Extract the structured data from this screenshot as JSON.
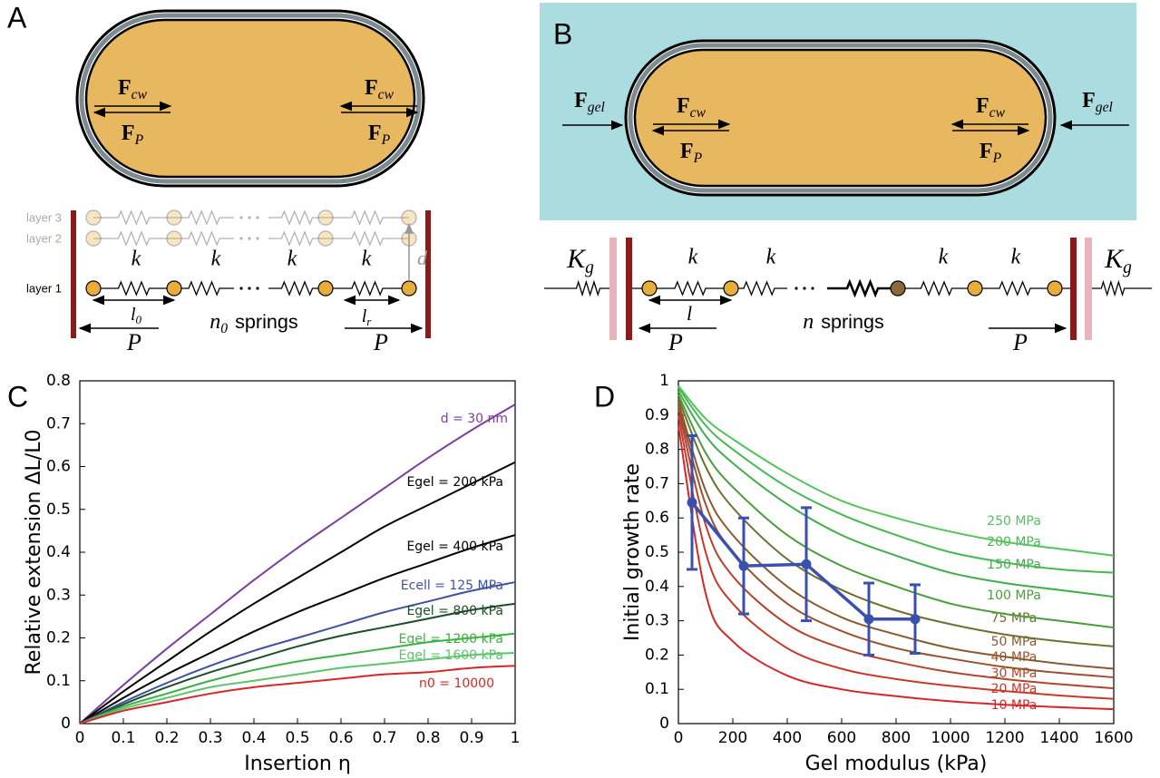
{
  "panel_a": {
    "label": "A",
    "force_cw": {
      "symbol": "F",
      "subscript": "cw"
    },
    "force_p": {
      "symbol": "F",
      "subscript": "P"
    },
    "layers": [
      "layer 3",
      "layer 2",
      "layer 1"
    ],
    "spring_constants": [
      "k",
      "k",
      "k",
      "k"
    ],
    "spacing": "d",
    "rest_length": {
      "symbol": "l",
      "subscript": "0"
    },
    "relaxed_length": {
      "symbol": "l",
      "subscript": "r"
    },
    "spring_count": {
      "symbol": "n",
      "subscript": "0",
      "text": "springs"
    },
    "pressure": [
      "P",
      "P"
    ]
  },
  "panel_b": {
    "label": "B",
    "force_gel": {
      "symbol": "F",
      "subscript": "gel"
    },
    "force_cw": {
      "symbol": "F",
      "subscript": "cw"
    },
    "force_p": {
      "symbol": "F",
      "subscript": "P"
    },
    "gel_stiffness": {
      "symbol": "K",
      "subscript": "g"
    },
    "spring_constants": [
      "k",
      "k",
      "k",
      "k"
    ],
    "length": "l",
    "spring_count": {
      "symbol": "n",
      "text": "springs"
    },
    "pressure": [
      "P",
      "P"
    ]
  },
  "chart_data": [
    {
      "type": "line",
      "panel": "C",
      "x_label": "Insertion η",
      "y_label": "Relative extension ΔL/L0",
      "x": [
        0,
        0.1,
        0.2,
        0.3,
        0.4,
        0.5,
        0.6,
        0.7,
        0.8,
        0.9,
        1
      ],
      "xlim": [
        0,
        1
      ],
      "ylim": [
        0,
        0.8
      ],
      "xticks": [
        0,
        0.1,
        0.2,
        0.3,
        0.4,
        0.5,
        0.6,
        0.7,
        0.8,
        0.9,
        1
      ],
      "yticks": [
        0,
        0.1,
        0.2,
        0.3,
        0.4,
        0.5,
        0.6,
        0.7,
        0.8
      ],
      "series": [
        {
          "name": "d = 30 nm",
          "color": "#7b3f9e",
          "values": [
            0,
            0.09,
            0.175,
            0.255,
            0.335,
            0.41,
            0.48,
            0.55,
            0.62,
            0.685,
            0.745
          ]
        },
        {
          "name": "Egel = 200 kPa",
          "color": "#000000",
          "values": [
            0,
            0.075,
            0.145,
            0.215,
            0.28,
            0.34,
            0.4,
            0.46,
            0.51,
            0.56,
            0.61
          ]
        },
        {
          "name": "Egel = 400 kPa",
          "color": "#000000",
          "values": [
            0,
            0.06,
            0.115,
            0.165,
            0.215,
            0.26,
            0.3,
            0.34,
            0.375,
            0.41,
            0.44
          ]
        },
        {
          "name": "Ecell = 125 MPa",
          "color": "#3f51a5",
          "values": [
            0,
            0.05,
            0.095,
            0.135,
            0.17,
            0.2,
            0.23,
            0.26,
            0.285,
            0.31,
            0.33
          ]
        },
        {
          "name": "Egel = 800 kPa",
          "color": "#1e4d2b",
          "values": [
            0,
            0.045,
            0.085,
            0.12,
            0.15,
            0.18,
            0.205,
            0.225,
            0.245,
            0.265,
            0.28
          ]
        },
        {
          "name": "Egel = 1200 kPa",
          "color": "#3cb043",
          "values": [
            0,
            0.04,
            0.07,
            0.1,
            0.125,
            0.145,
            0.16,
            0.175,
            0.19,
            0.2,
            0.21
          ]
        },
        {
          "name": "Egel = 1600 kPa",
          "color": "#5cc46a",
          "values": [
            0,
            0.035,
            0.06,
            0.085,
            0.1,
            0.115,
            0.13,
            0.14,
            0.15,
            0.16,
            0.165
          ]
        },
        {
          "name": "n0 = 10000",
          "color": "#d62728",
          "values": [
            0,
            0.03,
            0.05,
            0.07,
            0.085,
            0.095,
            0.105,
            0.115,
            0.12,
            0.13,
            0.135
          ]
        }
      ]
    },
    {
      "type": "line",
      "panel": "D",
      "x_label": "Gel modulus (kPa)",
      "y_label": "Initial growth rate",
      "x": [
        0,
        100,
        200,
        400,
        600,
        800,
        1000,
        1200,
        1400,
        1600
      ],
      "xlim": [
        0,
        1600
      ],
      "ylim": [
        0,
        1
      ],
      "xticks": [
        0,
        200,
        400,
        600,
        800,
        1000,
        1200,
        1400,
        1600
      ],
      "yticks": [
        0,
        0.1,
        0.2,
        0.3,
        0.4,
        0.5,
        0.6,
        0.7,
        0.8,
        0.9,
        1
      ],
      "series": [
        {
          "name": "10 MPa",
          "color": "#d62728",
          "values": [
            0.87,
            0.38,
            0.24,
            0.14,
            0.1,
            0.08,
            0.065,
            0.055,
            0.048,
            0.042
          ]
        },
        {
          "name": "20 MPa",
          "color": "#c63a2a",
          "values": [
            0.9,
            0.5,
            0.35,
            0.22,
            0.16,
            0.13,
            0.11,
            0.095,
            0.082,
            0.072
          ]
        },
        {
          "name": "30 MPa",
          "color": "#b2452c",
          "values": [
            0.92,
            0.58,
            0.43,
            0.29,
            0.22,
            0.18,
            0.15,
            0.13,
            0.115,
            0.103
          ]
        },
        {
          "name": "40 MPa",
          "color": "#9c4f2d",
          "values": [
            0.93,
            0.64,
            0.5,
            0.35,
            0.27,
            0.22,
            0.19,
            0.165,
            0.148,
            0.135
          ]
        },
        {
          "name": "50 MPa",
          "color": "#8a5a2e",
          "values": [
            0.94,
            0.68,
            0.55,
            0.4,
            0.31,
            0.26,
            0.22,
            0.195,
            0.175,
            0.16
          ]
        },
        {
          "name": "75 MPa",
          "color": "#6f7030",
          "values": [
            0.95,
            0.75,
            0.63,
            0.48,
            0.39,
            0.33,
            0.29,
            0.26,
            0.24,
            0.225
          ]
        },
        {
          "name": "100 MPa",
          "color": "#4a9e3a",
          "values": [
            0.96,
            0.79,
            0.69,
            0.55,
            0.46,
            0.4,
            0.35,
            0.32,
            0.3,
            0.28
          ]
        },
        {
          "name": "150 MPa",
          "color": "#3fae48",
          "values": [
            0.97,
            0.84,
            0.76,
            0.64,
            0.55,
            0.49,
            0.44,
            0.41,
            0.39,
            0.37
          ]
        },
        {
          "name": "200 MPa",
          "color": "#46ba50",
          "values": [
            0.98,
            0.87,
            0.8,
            0.69,
            0.61,
            0.55,
            0.5,
            0.47,
            0.45,
            0.44
          ]
        },
        {
          "name": "250 MPa",
          "color": "#52c45c",
          "values": [
            0.985,
            0.89,
            0.83,
            0.73,
            0.65,
            0.6,
            0.56,
            0.53,
            0.51,
            0.49
          ]
        }
      ],
      "measurements": {
        "color": "#3a4fb0",
        "x": [
          50,
          240,
          470,
          700,
          870
        ],
        "values": [
          0.645,
          0.46,
          0.465,
          0.305,
          0.305
        ],
        "errors": [
          0.195,
          0.14,
          0.165,
          0.105,
          0.1
        ]
      }
    }
  ]
}
